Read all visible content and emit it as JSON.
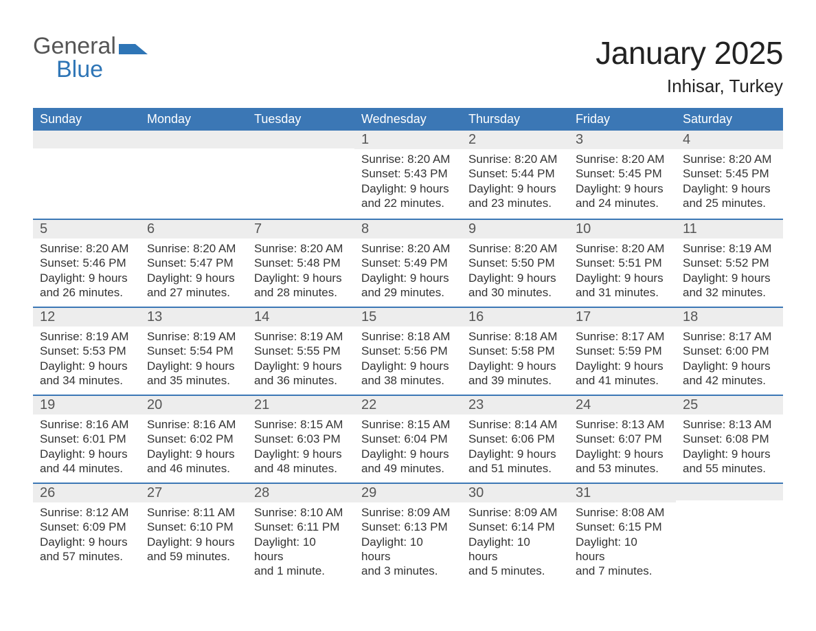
{
  "logo": {
    "word1": "General",
    "word2": "Blue"
  },
  "title": "January 2025",
  "location": "Inhisar, Turkey",
  "accent_color": "#3b77b5",
  "header_bg": "#3b77b5",
  "header_fg": "#ffffff",
  "daynum_bg": "#ededed",
  "text_color": "#333333",
  "week_days": [
    "Sunday",
    "Monday",
    "Tuesday",
    "Wednesday",
    "Thursday",
    "Friday",
    "Saturday"
  ],
  "weeks": [
    [
      {
        "empty": true
      },
      {
        "empty": true
      },
      {
        "empty": true
      },
      {
        "day": "1",
        "sunrise": "Sunrise: 8:20 AM",
        "sunset": "Sunset: 5:43 PM",
        "dl1": "Daylight: 9 hours",
        "dl2": "and 22 minutes."
      },
      {
        "day": "2",
        "sunrise": "Sunrise: 8:20 AM",
        "sunset": "Sunset: 5:44 PM",
        "dl1": "Daylight: 9 hours",
        "dl2": "and 23 minutes."
      },
      {
        "day": "3",
        "sunrise": "Sunrise: 8:20 AM",
        "sunset": "Sunset: 5:45 PM",
        "dl1": "Daylight: 9 hours",
        "dl2": "and 24 minutes."
      },
      {
        "day": "4",
        "sunrise": "Sunrise: 8:20 AM",
        "sunset": "Sunset: 5:45 PM",
        "dl1": "Daylight: 9 hours",
        "dl2": "and 25 minutes."
      }
    ],
    [
      {
        "day": "5",
        "sunrise": "Sunrise: 8:20 AM",
        "sunset": "Sunset: 5:46 PM",
        "dl1": "Daylight: 9 hours",
        "dl2": "and 26 minutes."
      },
      {
        "day": "6",
        "sunrise": "Sunrise: 8:20 AM",
        "sunset": "Sunset: 5:47 PM",
        "dl1": "Daylight: 9 hours",
        "dl2": "and 27 minutes."
      },
      {
        "day": "7",
        "sunrise": "Sunrise: 8:20 AM",
        "sunset": "Sunset: 5:48 PM",
        "dl1": "Daylight: 9 hours",
        "dl2": "and 28 minutes."
      },
      {
        "day": "8",
        "sunrise": "Sunrise: 8:20 AM",
        "sunset": "Sunset: 5:49 PM",
        "dl1": "Daylight: 9 hours",
        "dl2": "and 29 minutes."
      },
      {
        "day": "9",
        "sunrise": "Sunrise: 8:20 AM",
        "sunset": "Sunset: 5:50 PM",
        "dl1": "Daylight: 9 hours",
        "dl2": "and 30 minutes."
      },
      {
        "day": "10",
        "sunrise": "Sunrise: 8:20 AM",
        "sunset": "Sunset: 5:51 PM",
        "dl1": "Daylight: 9 hours",
        "dl2": "and 31 minutes."
      },
      {
        "day": "11",
        "sunrise": "Sunrise: 8:19 AM",
        "sunset": "Sunset: 5:52 PM",
        "dl1": "Daylight: 9 hours",
        "dl2": "and 32 minutes."
      }
    ],
    [
      {
        "day": "12",
        "sunrise": "Sunrise: 8:19 AM",
        "sunset": "Sunset: 5:53 PM",
        "dl1": "Daylight: 9 hours",
        "dl2": "and 34 minutes."
      },
      {
        "day": "13",
        "sunrise": "Sunrise: 8:19 AM",
        "sunset": "Sunset: 5:54 PM",
        "dl1": "Daylight: 9 hours",
        "dl2": "and 35 minutes."
      },
      {
        "day": "14",
        "sunrise": "Sunrise: 8:19 AM",
        "sunset": "Sunset: 5:55 PM",
        "dl1": "Daylight: 9 hours",
        "dl2": "and 36 minutes."
      },
      {
        "day": "15",
        "sunrise": "Sunrise: 8:18 AM",
        "sunset": "Sunset: 5:56 PM",
        "dl1": "Daylight: 9 hours",
        "dl2": "and 38 minutes."
      },
      {
        "day": "16",
        "sunrise": "Sunrise: 8:18 AM",
        "sunset": "Sunset: 5:58 PM",
        "dl1": "Daylight: 9 hours",
        "dl2": "and 39 minutes."
      },
      {
        "day": "17",
        "sunrise": "Sunrise: 8:17 AM",
        "sunset": "Sunset: 5:59 PM",
        "dl1": "Daylight: 9 hours",
        "dl2": "and 41 minutes."
      },
      {
        "day": "18",
        "sunrise": "Sunrise: 8:17 AM",
        "sunset": "Sunset: 6:00 PM",
        "dl1": "Daylight: 9 hours",
        "dl2": "and 42 minutes."
      }
    ],
    [
      {
        "day": "19",
        "sunrise": "Sunrise: 8:16 AM",
        "sunset": "Sunset: 6:01 PM",
        "dl1": "Daylight: 9 hours",
        "dl2": "and 44 minutes."
      },
      {
        "day": "20",
        "sunrise": "Sunrise: 8:16 AM",
        "sunset": "Sunset: 6:02 PM",
        "dl1": "Daylight: 9 hours",
        "dl2": "and 46 minutes."
      },
      {
        "day": "21",
        "sunrise": "Sunrise: 8:15 AM",
        "sunset": "Sunset: 6:03 PM",
        "dl1": "Daylight: 9 hours",
        "dl2": "and 48 minutes."
      },
      {
        "day": "22",
        "sunrise": "Sunrise: 8:15 AM",
        "sunset": "Sunset: 6:04 PM",
        "dl1": "Daylight: 9 hours",
        "dl2": "and 49 minutes."
      },
      {
        "day": "23",
        "sunrise": "Sunrise: 8:14 AM",
        "sunset": "Sunset: 6:06 PM",
        "dl1": "Daylight: 9 hours",
        "dl2": "and 51 minutes."
      },
      {
        "day": "24",
        "sunrise": "Sunrise: 8:13 AM",
        "sunset": "Sunset: 6:07 PM",
        "dl1": "Daylight: 9 hours",
        "dl2": "and 53 minutes."
      },
      {
        "day": "25",
        "sunrise": "Sunrise: 8:13 AM",
        "sunset": "Sunset: 6:08 PM",
        "dl1": "Daylight: 9 hours",
        "dl2": "and 55 minutes."
      }
    ],
    [
      {
        "day": "26",
        "sunrise": "Sunrise: 8:12 AM",
        "sunset": "Sunset: 6:09 PM",
        "dl1": "Daylight: 9 hours",
        "dl2": "and 57 minutes."
      },
      {
        "day": "27",
        "sunrise": "Sunrise: 8:11 AM",
        "sunset": "Sunset: 6:10 PM",
        "dl1": "Daylight: 9 hours",
        "dl2": "and 59 minutes."
      },
      {
        "day": "28",
        "sunrise": "Sunrise: 8:10 AM",
        "sunset": "Sunset: 6:11 PM",
        "dl1": "Daylight: 10 hours",
        "dl2": "and 1 minute."
      },
      {
        "day": "29",
        "sunrise": "Sunrise: 8:09 AM",
        "sunset": "Sunset: 6:13 PM",
        "dl1": "Daylight: 10 hours",
        "dl2": "and 3 minutes."
      },
      {
        "day": "30",
        "sunrise": "Sunrise: 8:09 AM",
        "sunset": "Sunset: 6:14 PM",
        "dl1": "Daylight: 10 hours",
        "dl2": "and 5 minutes."
      },
      {
        "day": "31",
        "sunrise": "Sunrise: 8:08 AM",
        "sunset": "Sunset: 6:15 PM",
        "dl1": "Daylight: 10 hours",
        "dl2": "and 7 minutes."
      },
      {
        "empty": true
      }
    ]
  ]
}
